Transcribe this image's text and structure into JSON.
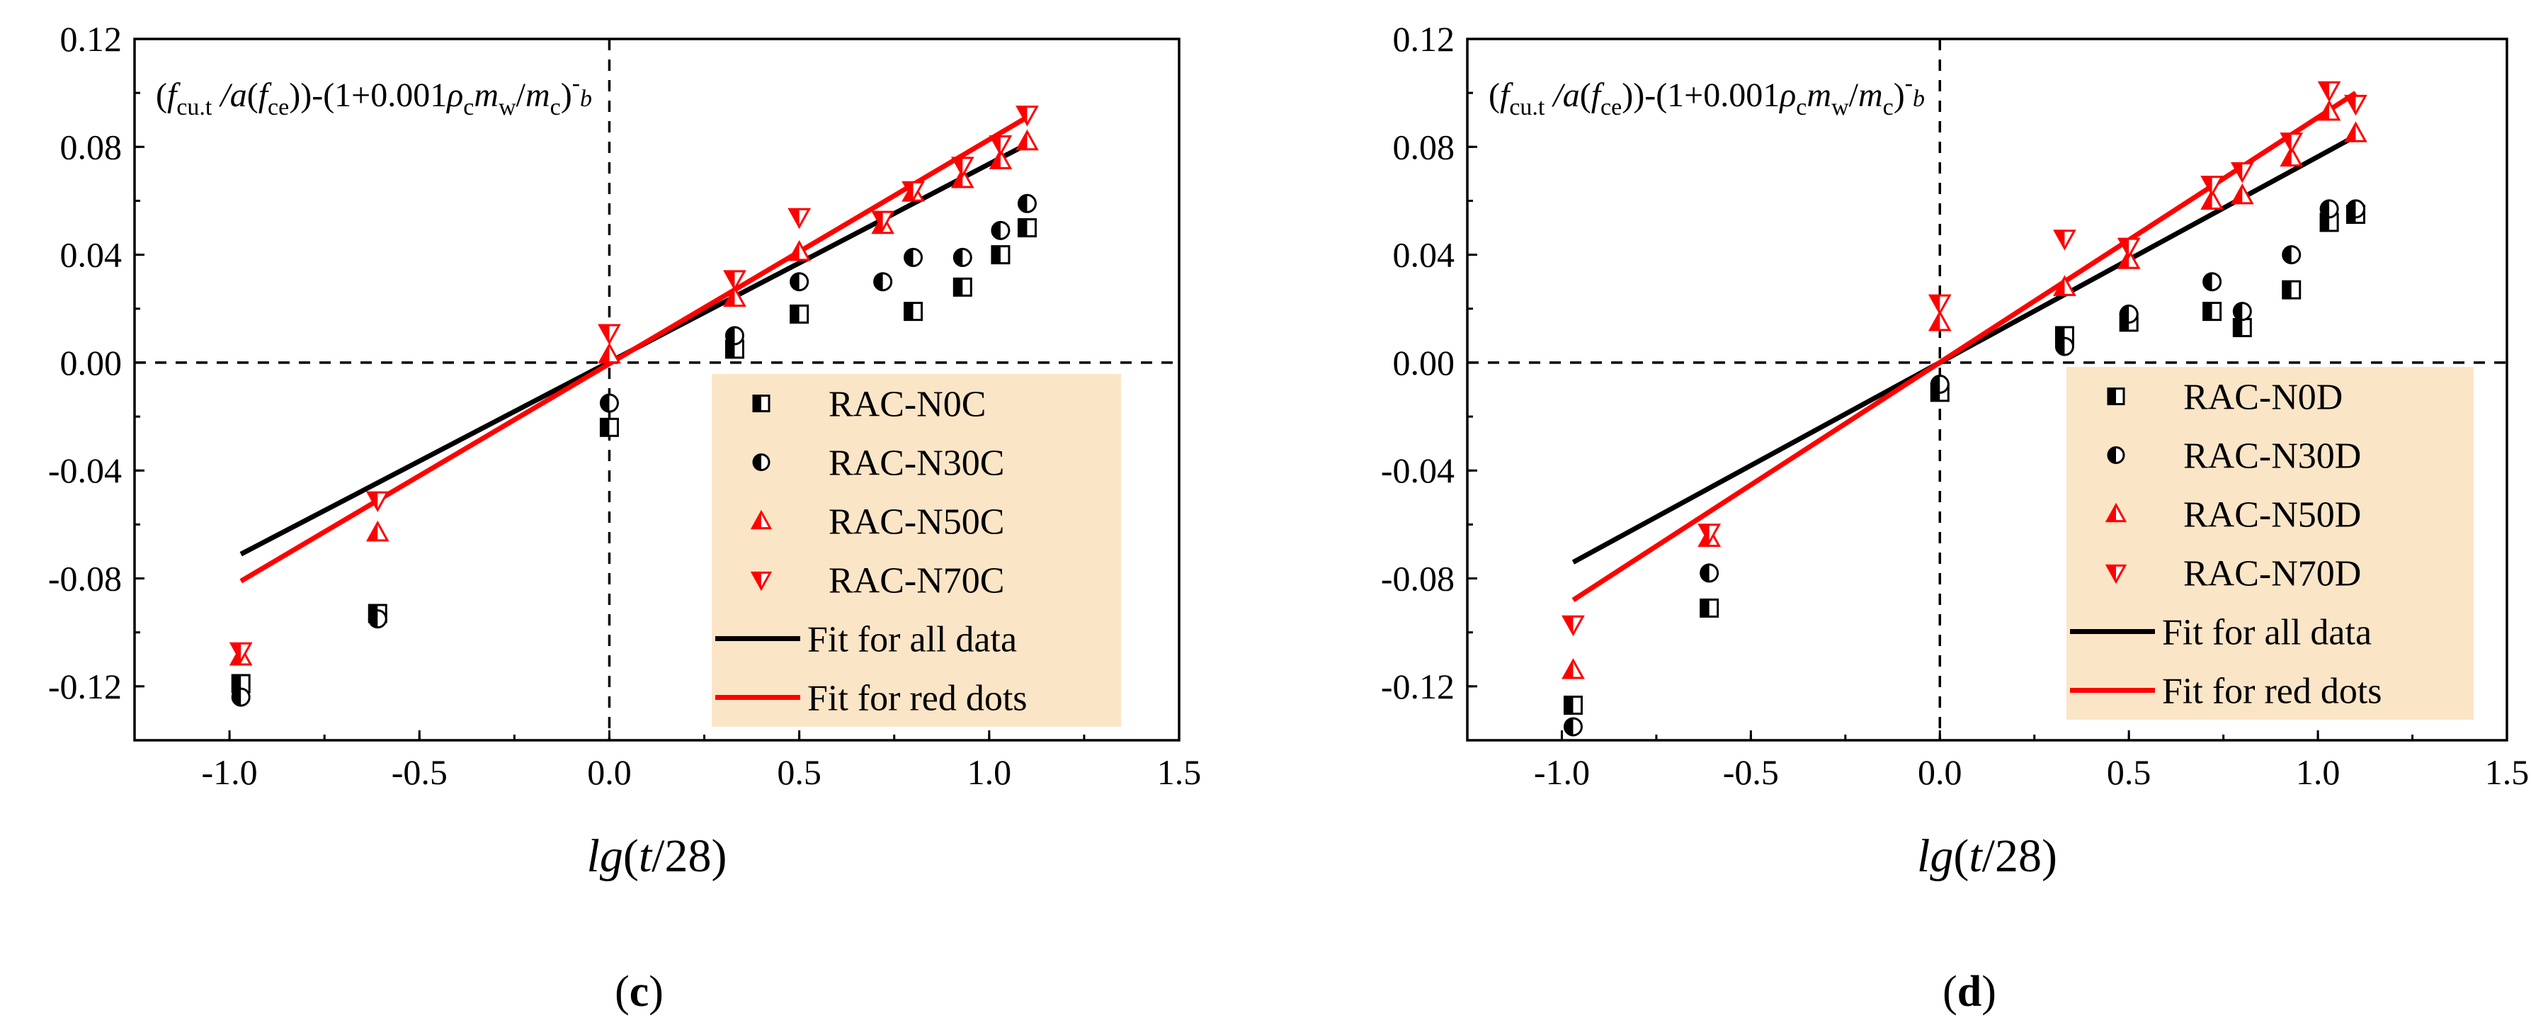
{
  "chart_data": [
    {
      "type": "scatter",
      "panel_label": "(c)",
      "xlabel": "lg(t/28)",
      "equation": "(fcu.t/a(fce))-(1+0.001ρcmw/mc)-b",
      "xlim": [
        -1.25,
        1.5
      ],
      "ylim": [
        -0.14,
        0.12
      ],
      "xticks": [
        -1.0,
        -0.5,
        0.0,
        0.5,
        1.0,
        1.5
      ],
      "xtick_labels": [
        "-1.0",
        "-0.5",
        "0.0",
        "0.5",
        "1.0",
        "1.5"
      ],
      "yticks": [
        -0.12,
        -0.08,
        -0.04,
        0.0,
        0.04,
        0.08,
        0.12
      ],
      "ytick_labels": [
        "-0.12",
        "-0.08",
        "-0.04",
        "0.00",
        "0.04",
        "0.08",
        "0.12"
      ],
      "legend_position": "bottom-right",
      "series": [
        {
          "name": "RAC-N0C",
          "marker": "half-square",
          "color": "#000000",
          "x": [
            -0.97,
            -0.61,
            0.0,
            0.33,
            0.5,
            0.8,
            0.93,
            1.03,
            1.1
          ],
          "y": [
            -0.119,
            -0.093,
            -0.024,
            0.005,
            0.018,
            0.019,
            0.028,
            0.04,
            0.05
          ]
        },
        {
          "name": "RAC-N30C",
          "marker": "half-circle",
          "color": "#000000",
          "x": [
            -0.97,
            -0.61,
            0.0,
            0.33,
            0.5,
            0.72,
            0.8,
            0.93,
            1.03,
            1.1
          ],
          "y": [
            -0.124,
            -0.095,
            -0.015,
            0.01,
            0.03,
            0.03,
            0.039,
            0.039,
            0.049,
            0.059
          ]
        },
        {
          "name": "RAC-N50C",
          "marker": "up-triangle",
          "color": "#ff0000",
          "x": [
            -0.97,
            -0.61,
            0.0,
            0.33,
            0.5,
            0.72,
            0.8,
            0.93,
            1.03,
            1.1
          ],
          "y": [
            -0.109,
            -0.063,
            0.003,
            0.024,
            0.041,
            0.051,
            0.063,
            0.068,
            0.075,
            0.082
          ]
        },
        {
          "name": "RAC-N70C",
          "marker": "down-triangle",
          "color": "#ff0000",
          "x": [
            -0.97,
            -0.61,
            0.0,
            0.33,
            0.5,
            0.72,
            0.8,
            0.93,
            1.03,
            1.1
          ],
          "y": [
            -0.107,
            -0.051,
            0.011,
            0.031,
            0.054,
            0.053,
            0.064,
            0.073,
            0.081,
            0.092
          ]
        },
        {
          "name": "Fit for all data",
          "type": "line",
          "color": "#000000",
          "x": [
            -0.97,
            1.1
          ],
          "y": [
            -0.071,
            0.081
          ]
        },
        {
          "name": "Fit for red dots",
          "type": "line",
          "color": "#ff0000",
          "x": [
            -0.97,
            1.1
          ],
          "y": [
            -0.081,
            0.091
          ]
        }
      ]
    },
    {
      "type": "scatter",
      "panel_label": "(d)",
      "xlabel": "lg(t/28)",
      "equation": "(fcu.t/a(fce))-(1+0.001ρcmw/mc)-b",
      "xlim": [
        -1.25,
        1.5
      ],
      "ylim": [
        -0.14,
        0.12
      ],
      "xticks": [
        -1.0,
        -0.5,
        0.0,
        0.5,
        1.0,
        1.5
      ],
      "xtick_labels": [
        "-1.0",
        "-0.5",
        "0.0",
        "0.5",
        "1.0",
        "1.5"
      ],
      "yticks": [
        -0.12,
        -0.08,
        -0.04,
        0.0,
        0.04,
        0.08,
        0.12
      ],
      "ytick_labels": [
        "-0.12",
        "-0.08",
        "-0.04",
        "0.00",
        "0.04",
        "0.08",
        "0.12"
      ],
      "legend_position": "bottom-right",
      "series": [
        {
          "name": "RAC-N0D",
          "marker": "half-square",
          "color": "#000000",
          "x": [
            -0.97,
            -0.61,
            0.0,
            0.33,
            0.5,
            0.72,
            0.8,
            0.93,
            1.03,
            1.1
          ],
          "y": [
            -0.127,
            -0.091,
            -0.011,
            0.01,
            0.015,
            0.019,
            0.013,
            0.027,
            0.052,
            0.055
          ]
        },
        {
          "name": "RAC-N30D",
          "marker": "half-circle",
          "color": "#000000",
          "x": [
            -0.97,
            -0.61,
            0.0,
            0.33,
            0.5,
            0.72,
            0.8,
            0.93,
            1.03,
            1.1
          ],
          "y": [
            -0.135,
            -0.078,
            -0.008,
            0.006,
            0.018,
            0.03,
            0.019,
            0.04,
            0.057,
            0.057
          ]
        },
        {
          "name": "RAC-N50D",
          "marker": "up-triangle",
          "color": "#ff0000",
          "x": [
            -0.97,
            -0.61,
            0.0,
            0.33,
            0.5,
            0.72,
            0.8,
            0.93,
            1.03,
            1.1
          ],
          "y": [
            -0.114,
            -0.065,
            0.015,
            0.028,
            0.038,
            0.06,
            0.062,
            0.076,
            0.093,
            0.085
          ]
        },
        {
          "name": "RAC-N70D",
          "marker": "down-triangle",
          "color": "#ff0000",
          "x": [
            -0.97,
            -0.61,
            0.0,
            0.33,
            0.5,
            0.72,
            0.8,
            0.93,
            1.03,
            1.1
          ],
          "y": [
            -0.097,
            -0.063,
            0.022,
            0.046,
            0.043,
            0.066,
            0.071,
            0.082,
            0.101,
            0.096
          ]
        },
        {
          "name": "Fit for all data",
          "type": "line",
          "color": "#000000",
          "x": [
            -0.97,
            1.1
          ],
          "y": [
            -0.074,
            0.084
          ]
        },
        {
          "name": "Fit for red dots",
          "type": "line",
          "color": "#ff0000",
          "x": [
            -0.97,
            1.1
          ],
          "y": [
            -0.088,
            0.1
          ]
        }
      ]
    }
  ]
}
